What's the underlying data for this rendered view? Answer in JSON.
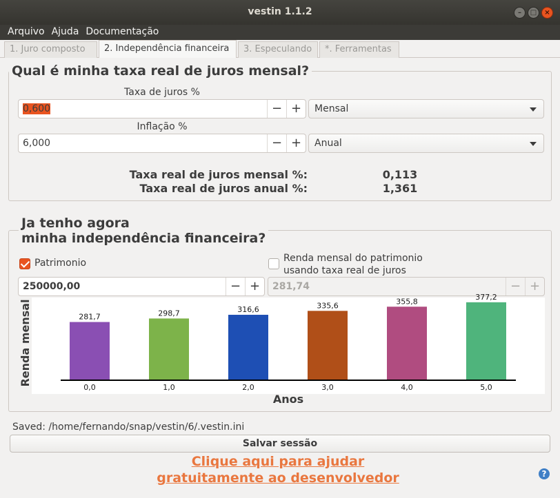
{
  "window": {
    "title": "vestin 1.1.2"
  },
  "menu": [
    "Arquivo",
    "Ajuda",
    "Documentação"
  ],
  "tabs": [
    "1. Juro composto",
    "2. Independência financeira",
    "3. Especulando",
    "*. Ferramentas"
  ],
  "rate_group": {
    "title": "Qual é minha taxa real de juros mensal?",
    "interest_label": "Taxa de juros %",
    "interest_value": "0,600",
    "interest_period": "Mensal",
    "inflation_label": "Inflação %",
    "inflation_value": "6,000",
    "inflation_period": "Anual",
    "real_monthly_label": "Taxa real de juros mensal %:",
    "real_monthly_value": "0,113",
    "real_annual_label": "Taxa real de juros anual %:",
    "real_annual_value": "1,361"
  },
  "independence_group": {
    "title_line1": "Ja tenho agora",
    "title_line2": "minha independência financeira?",
    "patrimonio_label": "Patrimonio",
    "patrimonio_checked": true,
    "renda_label_line1": "Renda mensal do patrimonio",
    "renda_label_line2": "usando taxa real de juros",
    "renda_checked": false,
    "patrimonio_value": "250000,00",
    "renda_value": "281,74"
  },
  "chart_data": {
    "type": "bar",
    "categories": [
      "0,0",
      "1,0",
      "2,0",
      "3,0",
      "4,0",
      "5,0"
    ],
    "values": [
      281.7,
      298.7,
      316.6,
      335.6,
      355.8,
      377.2
    ],
    "value_labels": [
      "281,7",
      "298,7",
      "316,6",
      "335,6",
      "355,8",
      "377,2"
    ],
    "colors": [
      "#8a4fb3",
      "#7db34a",
      "#1e4fb4",
      "#b04f18",
      "#b04c80",
      "#4fb47c"
    ],
    "xlabel": "Anos",
    "ylabel": "Renda mensal",
    "ylim": [
      0,
      400
    ],
    "grid": false
  },
  "status": {
    "saved": "Saved: /home/fernando/snap/vestin/6/.vestin.ini"
  },
  "buttons": {
    "save_session": "Salvar sessão"
  },
  "help_link": {
    "line1": "Clique aqui para ajudar",
    "line2": "gratuitamente ao desenvolvedor"
  },
  "icons": {
    "minimize": "minimize-icon",
    "maximize": "maximize-icon",
    "close": "close-icon",
    "help": "help-icon"
  },
  "colors": {
    "accent": "#e95420",
    "link": "#e9773f"
  }
}
